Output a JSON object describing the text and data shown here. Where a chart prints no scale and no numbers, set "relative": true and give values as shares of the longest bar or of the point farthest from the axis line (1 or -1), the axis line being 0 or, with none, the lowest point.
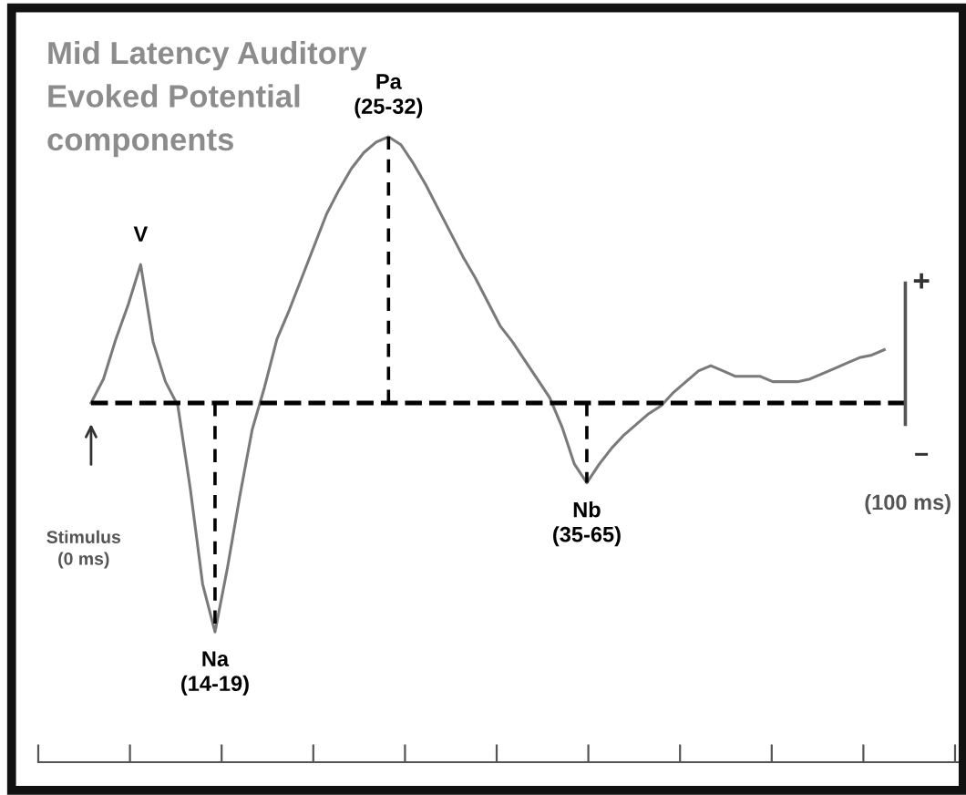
{
  "chart_data": {
    "type": "line",
    "title": "Mid Latency Auditory\nEvoked Potential\ncomponents",
    "relative": true,
    "categories": [
      null,
      null,
      null,
      null,
      null,
      null,
      null,
      null,
      null,
      null,
      null,
      null,
      null,
      null,
      null,
      null,
      null,
      null,
      null,
      null,
      null,
      null,
      null,
      null,
      null,
      null,
      null,
      null,
      null,
      null,
      null,
      null,
      null,
      null,
      null,
      null,
      null,
      null,
      null,
      null,
      null,
      null,
      null,
      null,
      null,
      null,
      null,
      null,
      null,
      null,
      null,
      null,
      null,
      null,
      null,
      null,
      null,
      null,
      null,
      null,
      null,
      null,
      null,
      null,
      null
    ],
    "series": [
      {
        "color": "#7a7a7a",
        "values": [
          0,
          0.09,
          0.24,
          0.37,
          0.52,
          0.23,
          0.08,
          -0.01,
          -0.32,
          -0.68,
          -0.86,
          -0.62,
          -0.35,
          -0.1,
          0.06,
          0.24,
          0.35,
          0.47,
          0.59,
          0.71,
          0.8,
          0.88,
          0.94,
          0.98,
          1,
          0.97,
          0.9,
          0.82,
          0.73,
          0.64,
          0.55,
          0.47,
          0.38,
          0.29,
          0.23,
          0.16,
          0.09,
          0.02,
          -0.09,
          -0.23,
          -0.3,
          -0.23,
          -0.17,
          -0.12,
          -0.08,
          -0.04,
          -0.01,
          0.04,
          0.08,
          0.12,
          0.14,
          0.12,
          0.1,
          0.1,
          0.1,
          0.08,
          0.08,
          0.08,
          0.09,
          0.11,
          0.13,
          0.15,
          0.17,
          0.18,
          0.2
        ]
      }
    ],
    "ref_lines": [
      {
        "axis": "y",
        "value": 0,
        "color": "#000000",
        "line_style": "dashed"
      }
    ],
    "annotations": [
      {
        "text": "V",
        "y": 0.52
      },
      {
        "text": "Na\n(14-19)",
        "y": -0.86
      },
      {
        "text": "Pa\n(25-32)",
        "y": 1
      },
      {
        "text": "Nb\n(35-65)",
        "y": -0.3
      },
      "Stimulus\n(0 ms)",
      "+",
      "−",
      "(100 ms)"
    ],
    "marker": "none",
    "line_style": "solid",
    "grid": false,
    "legend": false
  }
}
